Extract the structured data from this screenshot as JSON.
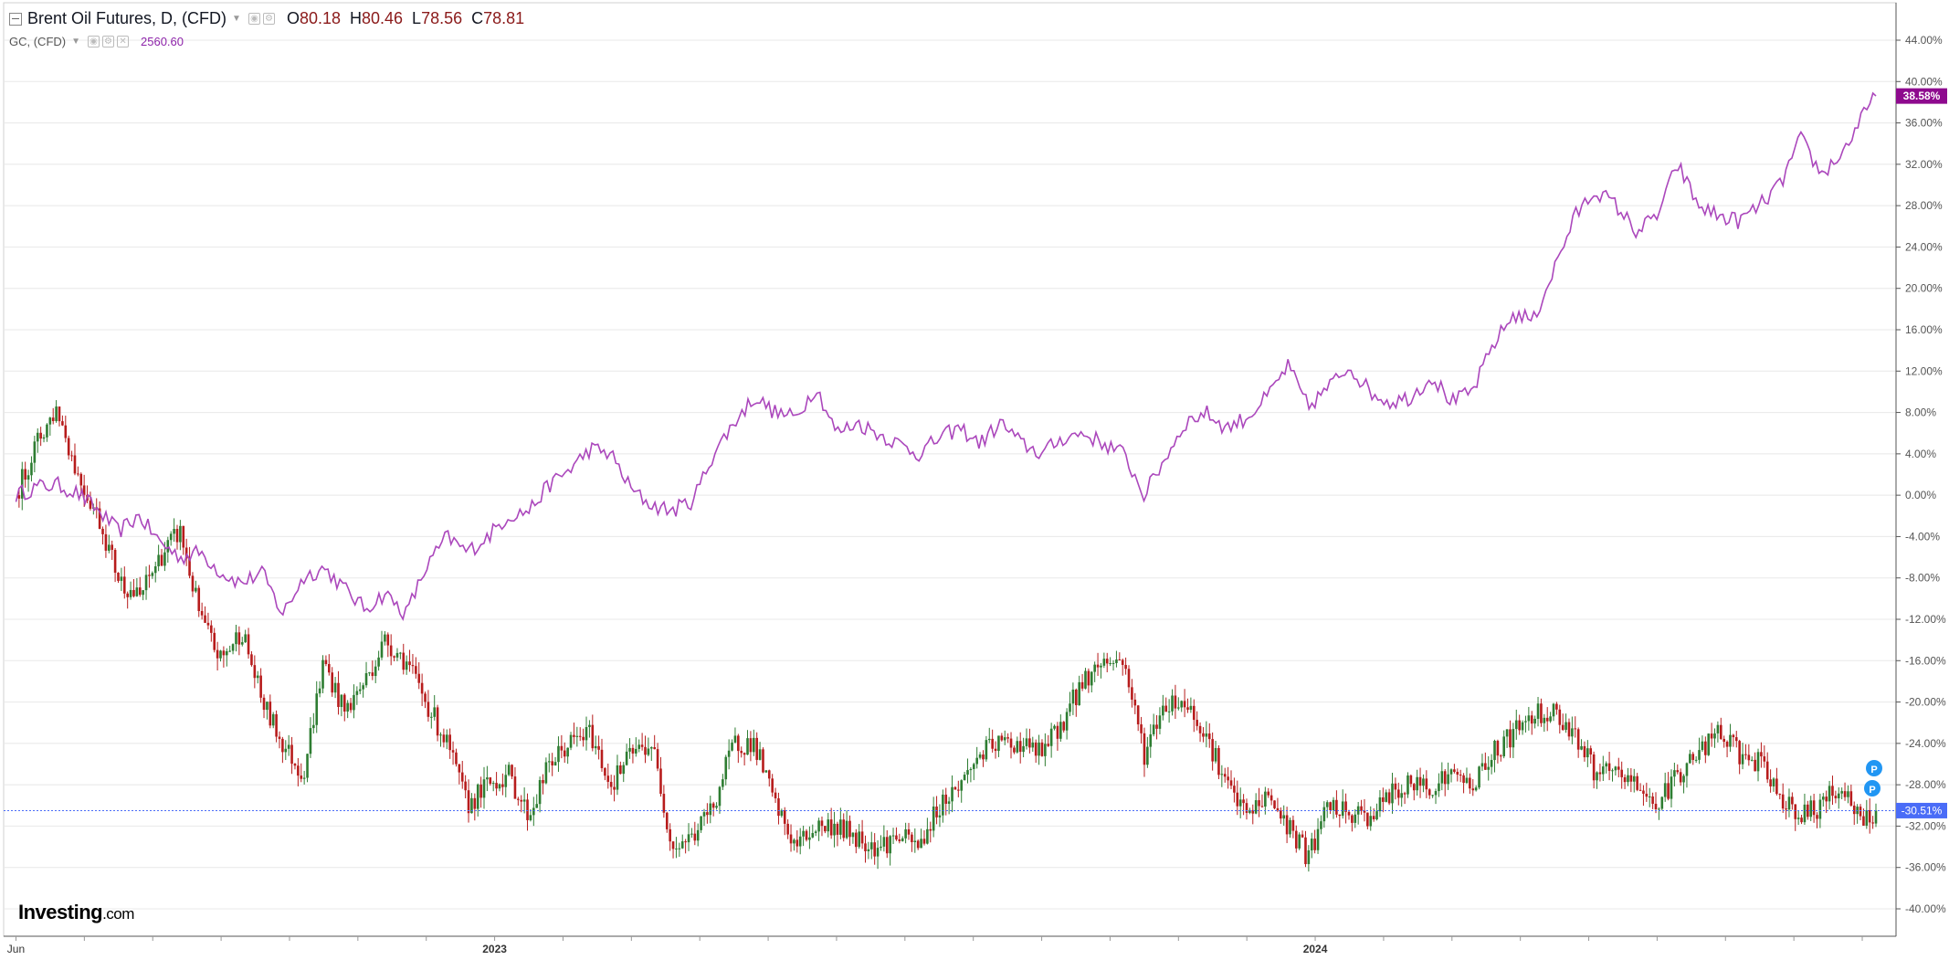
{
  "legend": {
    "main_title": "Brent Oil Futures, D, (CFD)",
    "open_label": "O",
    "open": "80.18",
    "high_label": "H",
    "high": "80.46",
    "low_label": "L",
    "low": "78.56",
    "close_label": "C",
    "close": "78.81",
    "compare_title": "GC, (CFD)",
    "compare_value": "2560.60"
  },
  "logo": {
    "brand": "Investing",
    "suffix": ".com"
  },
  "colors": {
    "up": "#26a69a",
    "up_body": "#2e7d32",
    "down": "#b71c1c",
    "gold_line": "#ab47bc",
    "gold_badge": "#8e0a8e",
    "oil_badge": "#4a6cf7",
    "grid": "#e8e8e8",
    "axis_text": "#555555"
  },
  "chart_data": {
    "type": "line",
    "title": "",
    "y_axis": {
      "unit": "%",
      "range": [
        -40,
        44
      ],
      "ticks": [
        "44.00%",
        "40.00%",
        "36.00%",
        "32.00%",
        "28.00%",
        "24.00%",
        "20.00%",
        "16.00%",
        "12.00%",
        "8.00%",
        "4.00%",
        "0.00%",
        "-4.00%",
        "-8.00%",
        "-12.00%",
        "-16.00%",
        "-20.00%",
        "-24.00%",
        "-28.00%",
        "-32.00%",
        "-36.00%",
        "-40.00%"
      ],
      "tick_values": [
        44,
        40,
        36,
        32,
        28,
        24,
        20,
        16,
        12,
        8,
        4,
        0,
        -4,
        -8,
        -12,
        -16,
        -20,
        -24,
        -28,
        -32,
        -36,
        -40
      ]
    },
    "x_axis": {
      "tick_labels": [
        "Jun",
        "2023",
        "2024"
      ],
      "tick_months": [
        0,
        7,
        19
      ],
      "range_months": [
        -0.1,
        27.2
      ]
    },
    "current_labels": {
      "gold": "38.58%",
      "oil": "-30.51%"
    },
    "markers": [
      "P",
      "P"
    ],
    "series": [
      {
        "ticker": "GC, (CFD)",
        "style": "line",
        "points": [
          [
            0,
            0
          ],
          [
            0.3,
            0.8
          ],
          [
            0.6,
            1
          ],
          [
            0.9,
            0.2
          ],
          [
            1.2,
            -1.5
          ],
          [
            1.5,
            -3.5
          ],
          [
            1.8,
            -2
          ],
          [
            2.1,
            -4.5
          ],
          [
            2.4,
            -6
          ],
          [
            2.7,
            -5.5
          ],
          [
            3.0,
            -7.5
          ],
          [
            3.3,
            -8.5
          ],
          [
            3.6,
            -7.5
          ],
          [
            3.9,
            -11.5
          ],
          [
            4.2,
            -8
          ],
          [
            4.5,
            -7
          ],
          [
            4.8,
            -9
          ],
          [
            5.1,
            -11
          ],
          [
            5.4,
            -9.5
          ],
          [
            5.7,
            -11.5
          ],
          [
            6.0,
            -7
          ],
          [
            6.3,
            -4
          ],
          [
            6.6,
            -5.5
          ],
          [
            6.9,
            -4
          ],
          [
            7.2,
            -2
          ],
          [
            7.5,
            -1.5
          ],
          [
            7.8,
            1
          ],
          [
            8.1,
            2.5
          ],
          [
            8.4,
            4.5
          ],
          [
            8.7,
            4
          ],
          [
            9.0,
            0.5
          ],
          [
            9.3,
            -1
          ],
          [
            9.6,
            -1.5
          ],
          [
            9.9,
            -0.5
          ],
          [
            10.2,
            4
          ],
          [
            10.5,
            7
          ],
          [
            10.8,
            9.5
          ],
          [
            11.1,
            8
          ],
          [
            11.4,
            7.5
          ],
          [
            11.7,
            10.5
          ],
          [
            12.0,
            6
          ],
          [
            12.3,
            7
          ],
          [
            12.6,
            6
          ],
          [
            12.9,
            5
          ],
          [
            13.2,
            4
          ],
          [
            13.5,
            5.5
          ],
          [
            13.8,
            6.5
          ],
          [
            14.1,
            5
          ],
          [
            14.4,
            7
          ],
          [
            14.7,
            5
          ],
          [
            15.0,
            4
          ],
          [
            15.3,
            5.5
          ],
          [
            15.6,
            6
          ],
          [
            15.9,
            5
          ],
          [
            16.2,
            4
          ],
          [
            16.5,
            0
          ],
          [
            16.8,
            3.5
          ],
          [
            17.1,
            7
          ],
          [
            17.4,
            8
          ],
          [
            17.7,
            6.5
          ],
          [
            18.0,
            7.5
          ],
          [
            18.3,
            9.5
          ],
          [
            18.6,
            12.5
          ],
          [
            18.9,
            8.5
          ],
          [
            19.2,
            10.5
          ],
          [
            19.5,
            12.5
          ],
          [
            19.8,
            10
          ],
          [
            20.1,
            9
          ],
          [
            20.4,
            9.5
          ],
          [
            20.7,
            11.5
          ],
          [
            21.0,
            9
          ],
          [
            21.3,
            10
          ],
          [
            21.6,
            14.5
          ],
          [
            21.9,
            17.5
          ],
          [
            22.2,
            17
          ],
          [
            22.5,
            22
          ],
          [
            22.8,
            27
          ],
          [
            23.1,
            29.5
          ],
          [
            23.4,
            28
          ],
          [
            23.7,
            25.5
          ],
          [
            24.0,
            27
          ],
          [
            24.3,
            32
          ],
          [
            24.6,
            28
          ],
          [
            24.9,
            27
          ],
          [
            25.2,
            26.5
          ],
          [
            25.5,
            28
          ],
          [
            25.8,
            30
          ],
          [
            26.1,
            34.5
          ],
          [
            26.4,
            31
          ],
          [
            26.7,
            33
          ],
          [
            27.0,
            36.5
          ],
          [
            27.2,
            38.6
          ]
        ]
      },
      {
        "ticker": "Brent Oil Futures, D, (CFD)",
        "style": "candlestick",
        "points": [
          [
            0,
            0
          ],
          [
            0.3,
            5
          ],
          [
            0.6,
            8.5
          ],
          [
            0.9,
            2
          ],
          [
            1.2,
            -2
          ],
          [
            1.5,
            -8
          ],
          [
            1.8,
            -10
          ],
          [
            2.1,
            -6
          ],
          [
            2.4,
            -3.5
          ],
          [
            2.7,
            -12
          ],
          [
            3.0,
            -16
          ],
          [
            3.3,
            -13
          ],
          [
            3.6,
            -20
          ],
          [
            3.9,
            -24
          ],
          [
            4.2,
            -27
          ],
          [
            4.5,
            -16
          ],
          [
            4.8,
            -21
          ],
          [
            5.1,
            -18
          ],
          [
            5.4,
            -14
          ],
          [
            5.7,
            -16
          ],
          [
            6.0,
            -20
          ],
          [
            6.3,
            -24
          ],
          [
            6.6,
            -30
          ],
          [
            6.9,
            -28
          ],
          [
            7.2,
            -27
          ],
          [
            7.5,
            -31
          ],
          [
            7.8,
            -26
          ],
          [
            8.1,
            -24
          ],
          [
            8.4,
            -23
          ],
          [
            8.7,
            -28
          ],
          [
            9.0,
            -25
          ],
          [
            9.3,
            -24
          ],
          [
            9.6,
            -34
          ],
          [
            9.9,
            -33
          ],
          [
            10.2,
            -30
          ],
          [
            10.5,
            -24
          ],
          [
            10.8,
            -24
          ],
          [
            11.1,
            -30
          ],
          [
            11.4,
            -34
          ],
          [
            11.7,
            -32
          ],
          [
            12.0,
            -32
          ],
          [
            12.3,
            -33
          ],
          [
            12.6,
            -34
          ],
          [
            12.9,
            -33
          ],
          [
            13.2,
            -34
          ],
          [
            13.5,
            -30
          ],
          [
            13.8,
            -28
          ],
          [
            14.1,
            -25
          ],
          [
            14.4,
            -24
          ],
          [
            14.7,
            -24
          ],
          [
            15.0,
            -25
          ],
          [
            15.3,
            -22
          ],
          [
            15.6,
            -18
          ],
          [
            15.9,
            -16
          ],
          [
            16.2,
            -16
          ],
          [
            16.5,
            -25
          ],
          [
            16.8,
            -20
          ],
          [
            17.1,
            -20
          ],
          [
            17.4,
            -23
          ],
          [
            17.7,
            -28
          ],
          [
            18.0,
            -31
          ],
          [
            18.3,
            -29
          ],
          [
            18.6,
            -32
          ],
          [
            18.9,
            -35
          ],
          [
            19.2,
            -30
          ],
          [
            19.5,
            -31
          ],
          [
            19.8,
            -31
          ],
          [
            20.1,
            -29
          ],
          [
            20.4,
            -28
          ],
          [
            20.7,
            -28
          ],
          [
            21.0,
            -27
          ],
          [
            21.3,
            -28
          ],
          [
            21.6,
            -25
          ],
          [
            21.9,
            -23
          ],
          [
            22.2,
            -21
          ],
          [
            22.5,
            -21
          ],
          [
            22.8,
            -23
          ],
          [
            23.1,
            -27
          ],
          [
            23.4,
            -27
          ],
          [
            23.7,
            -28
          ],
          [
            24.0,
            -30
          ],
          [
            24.3,
            -27
          ],
          [
            24.6,
            -25
          ],
          [
            24.9,
            -23
          ],
          [
            25.2,
            -25
          ],
          [
            25.5,
            -26
          ],
          [
            25.8,
            -29
          ],
          [
            26.1,
            -31
          ],
          [
            26.4,
            -30
          ],
          [
            26.7,
            -28
          ],
          [
            27.0,
            -32
          ],
          [
            27.2,
            -30.5
          ]
        ]
      }
    ]
  }
}
